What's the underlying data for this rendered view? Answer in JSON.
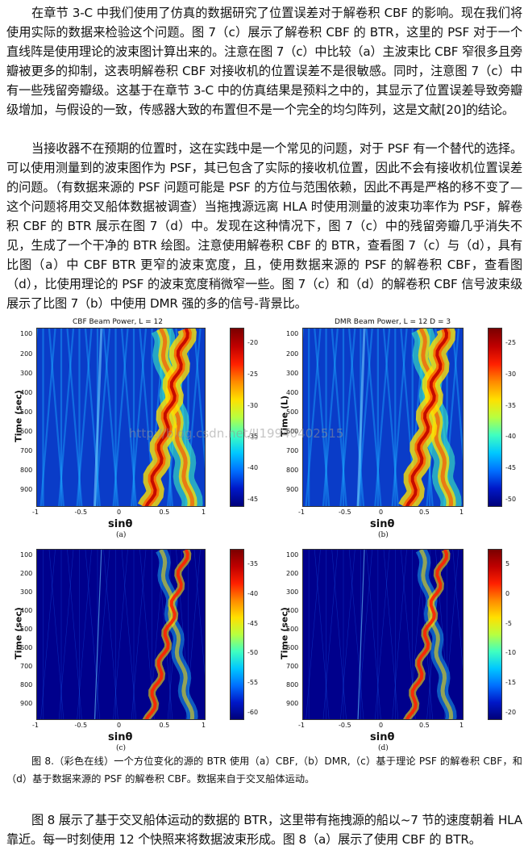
{
  "paragraphs": {
    "p1": "在章节 3-C 中我们使用了仿真的数据研究了位置误差对于解卷积 CBF 的影响。现在我们将使用实际的数据来检验这个问题。图 7（c）展示了解卷积 CBF 的 BTR，这里的 PSF 对于一个直线阵是使用理论的波束图计算出来的。注意在图 7（c）中比较（a）主波束比 CBF 窄很多且旁瓣被更多的抑制，这表明解卷积 CBF 对接收机的位置误差不是很敏感。同时，注意图 7（c）中有一些残留旁瓣级。这基于在章节 3-C 中的仿真结果是预料之中的，其显示了位置误差导致旁瓣级增加，与假设的一致，传感器大致的布置但不是一个完全的均匀阵列，这是文献[20]的结论。",
    "p2": "当接收器不在预期的位置时，这在实践中是一个常见的问题，对于 PSF 有一个替代的选择。可以使用测量到的波束图作为 PSF，其已包含了实际的接收机位置，因此不会有接收机位置误差的问题。（有数据来源的 PSF 问题可能是 PSF 的方位与范围依赖，因此不再是严格的移不变了—这个问题将用交叉船体数据被调查）当拖拽源远离 HLA 时使用测量的波束功率作为 PSF，解卷积 CBF 的 BTR 展示在图 7（d）中。发现在这种情况下，图 7（c）中的残留旁瓣几乎消失不见，生成了一个干净的 BTR 绘图。注意使用解卷积 CBF 的 BTR，查看图 7（c）与（d），具有比图（a）中 CBF BTR 更窄的波束宽度，且，使用数据来源的 PSF 的解卷积 CBF，查看图（d），比使用理论的 PSF 的波束宽度稍微窄一些。图 7（c）和（d）的解卷积 CBF 信号波束级展示了比图 7（b）中使用 DMR 强的多的信号-背景比。",
    "p3": "图 8 展示了基于交叉船体运动的数据的 BTR，这里带有拖拽源的船以~7 节的速度朝着 HLA 靠近。每一时刻使用 12 个快照来将数据波束形成。图 8（a）展示了使用 CBF 的 BTR。"
  },
  "caption": "图 8.（彩色在线）一个方位变化的源的 BTR 使用（a）CBF,（b）DMR,（c）基于理论 PSF 的解卷积 CBF，和（d）基于数据来源的 PSF 的解卷积 CBF。数据来自于交叉船体运动。",
  "watermark": "http://blog.csdn.net/JJ19940402515",
  "figure": {
    "panels": [
      {
        "id": "a",
        "title": "CBF Beam Power,  L = 12",
        "ylabel": "Time (sec)",
        "xlabel": "sinθ",
        "sub": "(a)",
        "cbar": [
          "-20",
          "-25",
          "-30",
          "-35",
          "-40",
          "-45"
        ]
      },
      {
        "id": "b",
        "title": "DMR Beam Power,  L = 12  D = 3",
        "ylabel": "Time (L)",
        "xlabel": "sinθ",
        "sub": "(b)",
        "cbar": [
          "-25",
          "-30",
          "-35",
          "-40",
          "-45",
          "-50"
        ]
      },
      {
        "id": "c",
        "title": "",
        "ylabel": "Time (sec)",
        "xlabel": "sinθ",
        "sub": "(c)",
        "cbar": [
          "-35",
          "-40",
          "-45",
          "-50",
          "-55",
          "-60"
        ]
      },
      {
        "id": "d",
        "title": "",
        "ylabel": "Time (sec)",
        "xlabel": "sinθ",
        "sub": "(d)",
        "cbar": [
          "5",
          "0",
          "-5",
          "-10",
          "-15",
          "-20"
        ]
      }
    ],
    "yticks": [
      "100",
      "200",
      "300",
      "400",
      "500",
      "600",
      "700",
      "800",
      "900"
    ],
    "xticks": [
      "-1",
      "-0.5",
      "0",
      "0.5",
      "1"
    ]
  },
  "colors": {
    "deep_blue": "#00007a",
    "cyan": "#00c8ff",
    "yellow": "#ffe000",
    "red": "#c00000"
  }
}
